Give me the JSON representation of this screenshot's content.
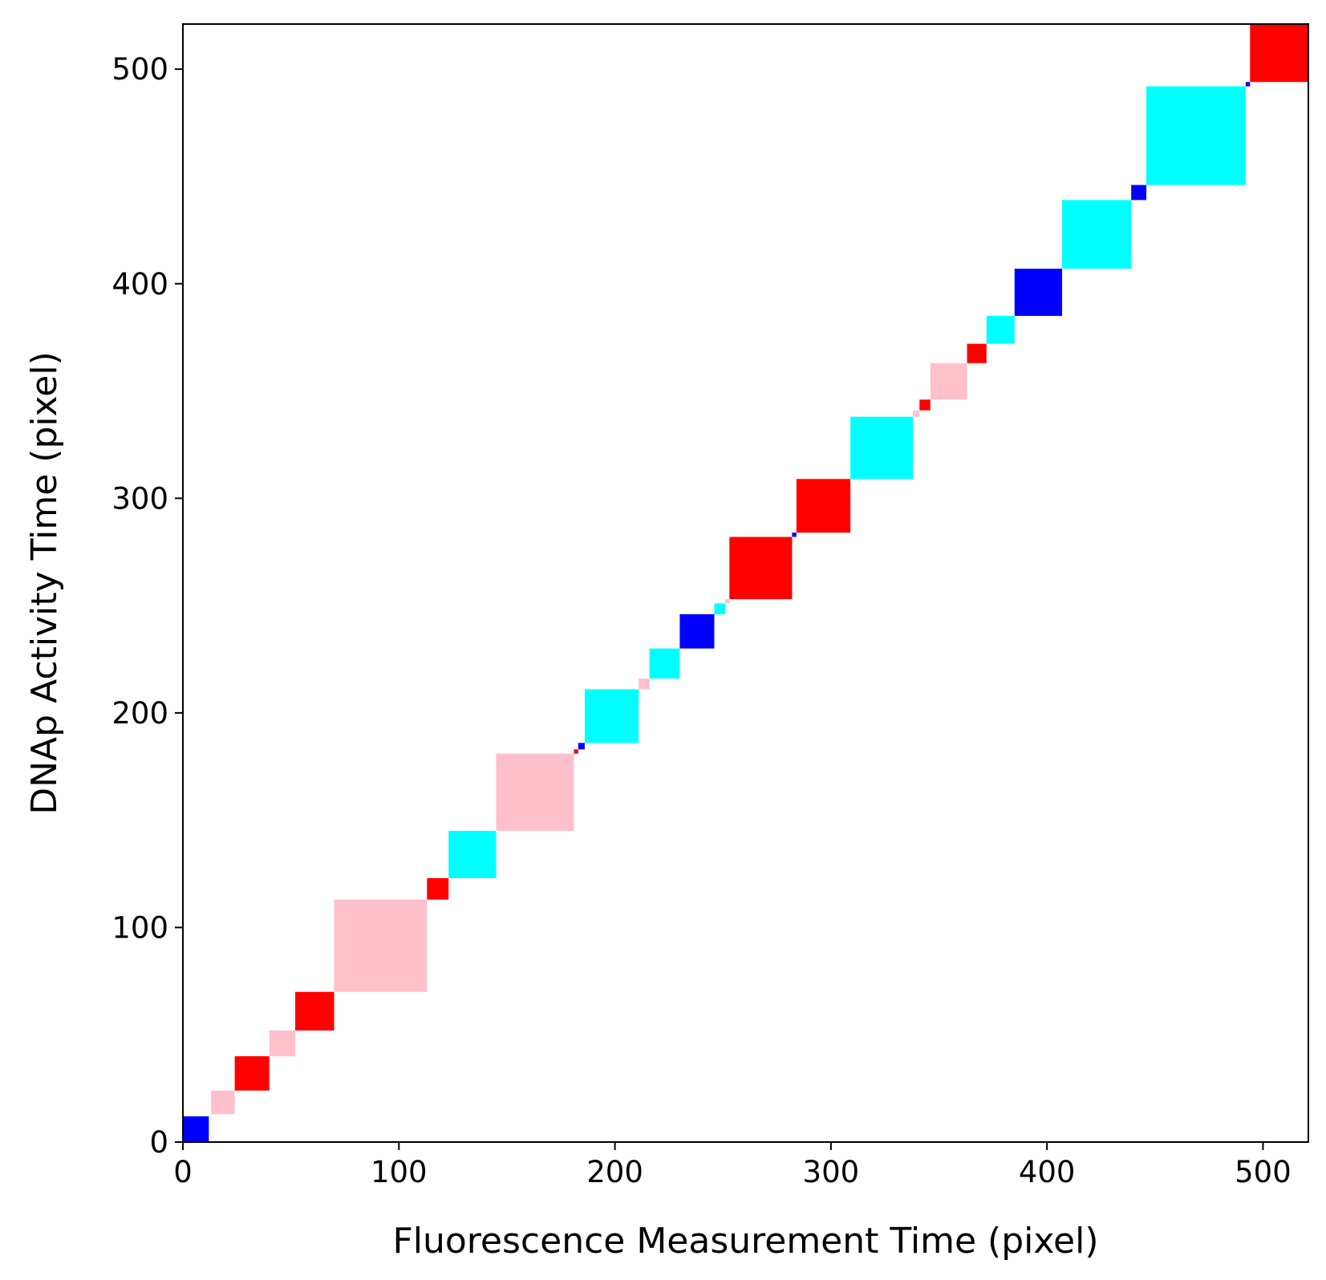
{
  "chart_data": {
    "type": "heatmap",
    "title": "",
    "xlabel": "Fluorescence Measurement Time (pixel)",
    "ylabel": "DNAp Activity Time (pixel)",
    "xlim": [
      0,
      521
    ],
    "ylim": [
      0,
      521
    ],
    "xticks": [
      0,
      100,
      200,
      300,
      400,
      500
    ],
    "yticks": [
      0,
      100,
      200,
      300,
      400,
      500
    ],
    "grid": false,
    "legend": "none",
    "colors": {
      "blue": "#0000ff",
      "pink": "#ffc0cb",
      "red": "#ff0000",
      "cyan": "#00ffff"
    },
    "blocks": [
      {
        "start": 0,
        "end": 12,
        "color": "blue"
      },
      {
        "start": 13,
        "end": 24,
        "color": "pink"
      },
      {
        "start": 24,
        "end": 40,
        "color": "red"
      },
      {
        "start": 40,
        "end": 52,
        "color": "pink"
      },
      {
        "start": 52,
        "end": 70,
        "color": "red"
      },
      {
        "start": 70,
        "end": 113,
        "color": "pink"
      },
      {
        "start": 113,
        "end": 123,
        "color": "red"
      },
      {
        "start": 123,
        "end": 145,
        "color": "cyan"
      },
      {
        "start": 145,
        "end": 181,
        "color": "pink"
      },
      {
        "start": 181,
        "end": 183,
        "color": "red"
      },
      {
        "start": 183,
        "end": 186,
        "color": "blue"
      },
      {
        "start": 186,
        "end": 211,
        "color": "cyan"
      },
      {
        "start": 211,
        "end": 216,
        "color": "pink"
      },
      {
        "start": 216,
        "end": 230,
        "color": "cyan"
      },
      {
        "start": 230,
        "end": 246,
        "color": "blue"
      },
      {
        "start": 246,
        "end": 251,
        "color": "cyan"
      },
      {
        "start": 251,
        "end": 253,
        "color": "pink"
      },
      {
        "start": 253,
        "end": 282,
        "color": "red"
      },
      {
        "start": 282,
        "end": 284,
        "color": "blue"
      },
      {
        "start": 284,
        "end": 309,
        "color": "red"
      },
      {
        "start": 309,
        "end": 338,
        "color": "cyan"
      },
      {
        "start": 338,
        "end": 341,
        "color": "pink"
      },
      {
        "start": 341,
        "end": 346,
        "color": "red"
      },
      {
        "start": 346,
        "end": 363,
        "color": "pink"
      },
      {
        "start": 363,
        "end": 372,
        "color": "red"
      },
      {
        "start": 372,
        "end": 385,
        "color": "cyan"
      },
      {
        "start": 385,
        "end": 407,
        "color": "blue"
      },
      {
        "start": 407,
        "end": 439,
        "color": "cyan"
      },
      {
        "start": 439,
        "end": 446,
        "color": "blue"
      },
      {
        "start": 446,
        "end": 492,
        "color": "cyan"
      },
      {
        "start": 492,
        "end": 494,
        "color": "blue"
      },
      {
        "start": 494,
        "end": 521,
        "color": "red"
      }
    ]
  }
}
